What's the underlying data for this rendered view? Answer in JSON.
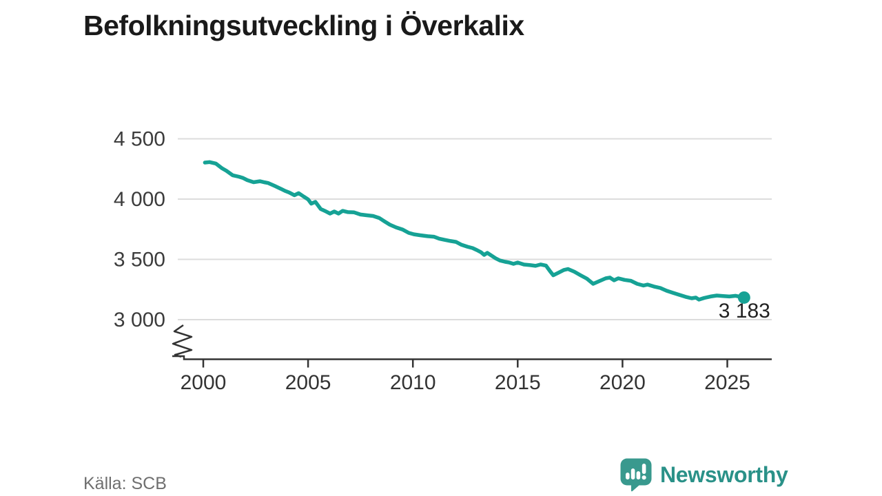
{
  "title": "Befolkningsutveckling i Överkalix",
  "source": "Källa: SCB",
  "brand": {
    "name": "Newsworthy",
    "logo_icon": "bar-chart-exclamation-speech-bubble"
  },
  "colors": {
    "line": "#16a295",
    "end_dot": "#16a295",
    "grid": "#dcdcdc",
    "axis": "#333333",
    "tick_label": "#333333",
    "y_label": "#3c3c3c",
    "title": "#1a1a1a",
    "annotation": "#222222",
    "source_text": "#6f6f6f",
    "brand_text": "#2a9188",
    "logo_bubble": "#39998e",
    "logo_marks": "#ffffff"
  },
  "chart_data": {
    "type": "line",
    "title": "Befolkningsutveckling i Överkalix",
    "xlabel": "",
    "ylabel": "",
    "x_ticks": [
      2000,
      2005,
      2010,
      2015,
      2020,
      2025
    ],
    "x_range": [
      1998.7,
      2027.1
    ],
    "y_ticks": [
      4500,
      4000,
      3500,
      3000
    ],
    "y_tick_labels": [
      "4 500",
      "4 000",
      "3 500",
      "3 000"
    ],
    "axis_break": true,
    "grid": "horizontal",
    "legend": "none",
    "last_value_label": "3 183",
    "series": [
      {
        "name": "Befolkning",
        "points": [
          [
            2000.08,
            4303
          ],
          [
            2000.3,
            4307
          ],
          [
            2000.6,
            4295
          ],
          [
            2000.9,
            4255
          ],
          [
            2001.1,
            4235
          ],
          [
            2001.4,
            4198
          ],
          [
            2001.7,
            4186
          ],
          [
            2001.9,
            4175
          ],
          [
            2002.1,
            4157
          ],
          [
            2002.4,
            4140
          ],
          [
            2002.7,
            4148
          ],
          [
            2002.9,
            4140
          ],
          [
            2003.1,
            4133
          ],
          [
            2003.4,
            4110
          ],
          [
            2003.7,
            4085
          ],
          [
            2003.9,
            4068
          ],
          [
            2004.1,
            4055
          ],
          [
            2004.35,
            4032
          ],
          [
            2004.55,
            4049
          ],
          [
            2004.8,
            4020
          ],
          [
            2005.0,
            3998
          ],
          [
            2005.15,
            3962
          ],
          [
            2005.35,
            3977
          ],
          [
            2005.6,
            3918
          ],
          [
            2005.85,
            3898
          ],
          [
            2006.05,
            3880
          ],
          [
            2006.25,
            3897
          ],
          [
            2006.45,
            3880
          ],
          [
            2006.65,
            3902
          ],
          [
            2006.9,
            3892
          ],
          [
            2007.2,
            3890
          ],
          [
            2007.5,
            3872
          ],
          [
            2007.8,
            3866
          ],
          [
            2008.1,
            3860
          ],
          [
            2008.4,
            3843
          ],
          [
            2008.65,
            3815
          ],
          [
            2008.9,
            3788
          ],
          [
            2009.2,
            3765
          ],
          [
            2009.5,
            3748
          ],
          [
            2009.8,
            3720
          ],
          [
            2010.05,
            3708
          ],
          [
            2010.35,
            3700
          ],
          [
            2010.7,
            3692
          ],
          [
            2011.0,
            3688
          ],
          [
            2011.25,
            3672
          ],
          [
            2011.5,
            3662
          ],
          [
            2011.8,
            3652
          ],
          [
            2012.05,
            3645
          ],
          [
            2012.3,
            3622
          ],
          [
            2012.6,
            3605
          ],
          [
            2012.85,
            3594
          ],
          [
            2013.05,
            3577
          ],
          [
            2013.25,
            3559
          ],
          [
            2013.4,
            3537
          ],
          [
            2013.55,
            3554
          ],
          [
            2013.75,
            3531
          ],
          [
            2013.95,
            3508
          ],
          [
            2014.15,
            3491
          ],
          [
            2014.4,
            3480
          ],
          [
            2014.6,
            3474
          ],
          [
            2014.8,
            3463
          ],
          [
            2015.0,
            3474
          ],
          [
            2015.3,
            3457
          ],
          [
            2015.6,
            3452
          ],
          [
            2015.85,
            3446
          ],
          [
            2016.1,
            3458
          ],
          [
            2016.35,
            3448
          ],
          [
            2016.55,
            3400
          ],
          [
            2016.7,
            3368
          ],
          [
            2016.95,
            3390
          ],
          [
            2017.2,
            3412
          ],
          [
            2017.4,
            3420
          ],
          [
            2017.7,
            3398
          ],
          [
            2018.0,
            3368
          ],
          [
            2018.3,
            3340
          ],
          [
            2018.6,
            3297
          ],
          [
            2018.9,
            3320
          ],
          [
            2019.2,
            3343
          ],
          [
            2019.4,
            3349
          ],
          [
            2019.6,
            3326
          ],
          [
            2019.8,
            3343
          ],
          [
            2020.1,
            3330
          ],
          [
            2020.4,
            3322
          ],
          [
            2020.7,
            3297
          ],
          [
            2021.0,
            3283
          ],
          [
            2021.2,
            3291
          ],
          [
            2021.5,
            3275
          ],
          [
            2021.8,
            3263
          ],
          [
            2022.1,
            3240
          ],
          [
            2022.4,
            3223
          ],
          [
            2022.7,
            3206
          ],
          [
            2023.0,
            3190
          ],
          [
            2023.3,
            3177
          ],
          [
            2023.5,
            3183
          ],
          [
            2023.65,
            3166
          ],
          [
            2023.9,
            3180
          ],
          [
            2024.2,
            3192
          ],
          [
            2024.5,
            3200
          ],
          [
            2024.8,
            3196
          ],
          [
            2025.1,
            3192
          ],
          [
            2025.4,
            3198
          ],
          [
            2025.8,
            3183
          ]
        ]
      }
    ]
  }
}
